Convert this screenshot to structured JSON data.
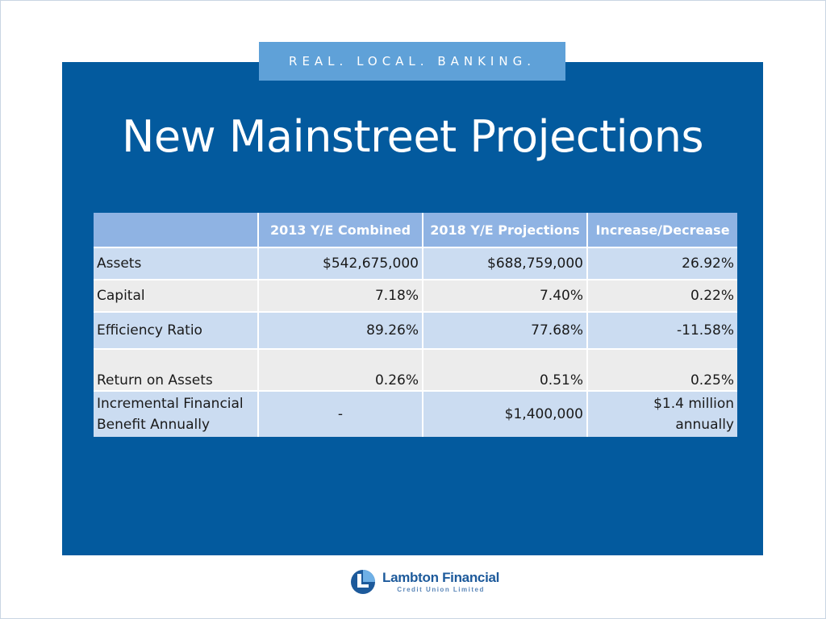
{
  "tagline": "REAL. LOCAL. BANKING.",
  "title": "New Mainstreet Projections",
  "table": {
    "headers": [
      "",
      "2013 Y/E Combined",
      "2018 Y/E Projections",
      "Increase/Decrease"
    ],
    "rows": [
      [
        "Assets",
        "$542,675,000",
        "$688,759,000",
        "26.92%"
      ],
      [
        "Capital",
        "7.18%",
        "7.40%",
        "0.22%"
      ],
      [
        "Efficiency Ratio",
        "89.26%",
        "77.68%",
        "-11.58%"
      ],
      [
        "Return on Assets",
        "0.26%",
        "0.51%",
        "0.25%"
      ],
      [
        "Incremental Financial Benefit Annually",
        "-",
        "$1,400,000",
        "$1.4 million annually"
      ]
    ]
  },
  "logo": {
    "name": "Lambton Financial",
    "subtitle": "Credit Union Limited",
    "icon": "lambton-logo-mark"
  },
  "colors": {
    "panel": "#035a9e",
    "tagline_bg": "#5fa1d8",
    "header_bg": "#8fb3e3",
    "row_blue": "#cbdcf1",
    "row_gray": "#ececec"
  }
}
